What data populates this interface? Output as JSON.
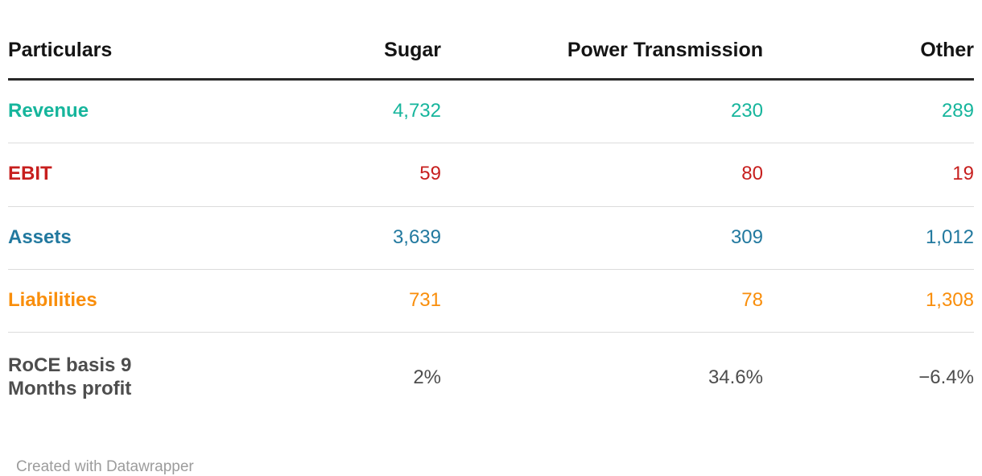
{
  "table": {
    "columns": [
      {
        "label": "Particulars"
      },
      {
        "label": "Sugar"
      },
      {
        "label": "Power Transmission"
      },
      {
        "label": "Other"
      }
    ],
    "rows": [
      {
        "label": "Revenue",
        "values": [
          "4,732",
          "230",
          "289"
        ],
        "color": "#16b59c"
      },
      {
        "label": "EBIT",
        "values": [
          "59",
          "80",
          "19"
        ],
        "color": "#c71f1e"
      },
      {
        "label": "Assets",
        "values": [
          "3,639",
          "309",
          "1,012"
        ],
        "color": "#22799f"
      },
      {
        "label": "Liabilities",
        "values": [
          "731",
          "78",
          "1,308"
        ],
        "color": "#f98e0b"
      },
      {
        "label": "RoCE basis 9\nMonths profit",
        "values": [
          "2%",
          "34.6%",
          "−6.4%"
        ],
        "color": "#4d4d4d"
      }
    ]
  },
  "footer": {
    "credit": "Created with Datawrapper"
  },
  "chart_data": {
    "type": "table",
    "title": "",
    "columns": [
      "Particulars",
      "Sugar",
      "Power Transmission",
      "Other"
    ],
    "rows": [
      [
        "Revenue",
        4732,
        230,
        289
      ],
      [
        "EBIT",
        59,
        80,
        19
      ],
      [
        "Assets",
        3639,
        309,
        1012
      ],
      [
        "Liabilities",
        731,
        78,
        1308
      ],
      [
        "RoCE basis 9 Months profit",
        "2%",
        "34.6%",
        "-6.4%"
      ]
    ],
    "row_colors": [
      "#16b59c",
      "#c71f1e",
      "#22799f",
      "#f98e0b",
      "#4d4d4d"
    ],
    "header_rule_color": "#282828",
    "divider_color": "#dcdcdc",
    "credit": "Created with Datawrapper"
  }
}
